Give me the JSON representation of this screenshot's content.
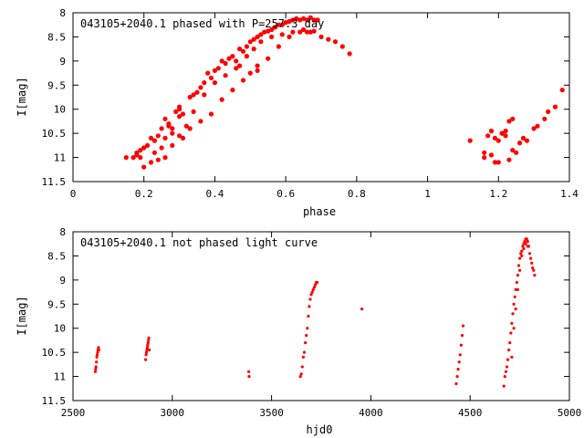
{
  "chart_data": [
    {
      "type": "scatter",
      "title": "043105+2040.1 phased with P=257.3 day",
      "xlabel": "phase",
      "ylabel": "I[mag]",
      "xlim": [
        0,
        1.4
      ],
      "ylim": [
        8,
        11.5
      ],
      "y_inverted": true,
      "xticks": [
        0,
        0.2,
        0.4,
        0.6,
        0.8,
        1,
        1.2,
        1.4
      ],
      "xtick_labels": [
        "0",
        "0.2",
        "0.4",
        "0.6",
        "0.8",
        "1",
        "1.2",
        "1.4"
      ],
      "yticks": [
        8,
        8.5,
        9,
        9.5,
        10,
        10.5,
        11,
        11.5
      ],
      "ytick_labels": [
        "8",
        "8.5",
        "9",
        "9.5",
        "10",
        "10.5",
        "11",
        "11.5"
      ],
      "grid": false,
      "marker_color": "#ff0000",
      "series": [
        {
          "x": [
            0.15,
            0.17,
            0.18,
            0.19,
            0.19,
            0.2,
            0.2,
            0.21,
            0.22,
            0.23,
            0.24,
            0.25,
            0.26,
            0.26,
            0.27,
            0.27,
            0.28,
            0.28,
            0.29,
            0.3,
            0.3,
            0.31,
            0.32,
            0.33,
            0.34,
            0.35,
            0.36,
            0.37,
            0.38,
            0.39,
            0.4,
            0.41,
            0.42,
            0.43,
            0.44,
            0.45,
            0.46,
            0.47,
            0.48,
            0.49,
            0.5,
            0.51,
            0.52,
            0.53,
            0.54,
            0.55,
            0.56,
            0.57,
            0.58,
            0.59,
            0.6,
            0.61,
            0.62,
            0.63,
            0.64,
            0.65,
            0.66,
            0.67,
            0.68,
            0.69,
            0.22,
            0.24,
            0.26,
            0.28,
            0.3,
            0.33,
            0.36,
            0.39,
            0.42,
            0.45,
            0.48,
            0.5,
            0.52,
            0.55,
            0.58,
            0.61,
            0.64,
            0.66,
            0.68,
            0.18,
            0.2,
            0.23,
            0.25,
            0.31,
            0.34,
            0.37,
            0.4,
            0.43,
            0.46,
            0.49,
            0.51,
            0.53,
            0.56,
            0.59,
            0.62,
            0.65,
            0.67,
            0.7,
            0.72,
            0.74,
            0.76,
            0.78,
            0.47,
            0.52,
            0.3,
            1.12,
            1.16,
            1.17,
            1.18,
            1.19,
            1.2,
            1.21,
            1.22,
            1.23,
            1.24,
            1.25,
            1.26,
            1.27,
            1.28,
            1.3,
            1.31,
            1.33,
            1.34,
            1.36,
            1.38,
            1.18,
            1.2,
            1.22,
            1.24,
            1.26,
            1.16,
            1.19,
            1.21,
            1.23
          ],
          "y": [
            11.0,
            11.0,
            10.9,
            10.85,
            11.0,
            10.8,
            11.2,
            10.75,
            10.6,
            10.65,
            10.55,
            10.4,
            10.2,
            10.6,
            10.3,
            10.35,
            10.5,
            10.4,
            10.05,
            9.95,
            10.0,
            10.1,
            10.35,
            9.75,
            9.7,
            9.65,
            9.55,
            9.45,
            9.25,
            9.35,
            9.2,
            9.15,
            9.0,
            9.05,
            8.95,
            8.9,
            9.0,
            8.75,
            8.8,
            8.7,
            8.6,
            8.55,
            8.5,
            8.45,
            8.4,
            8.38,
            8.35,
            8.3,
            8.25,
            8.25,
            8.2,
            8.18,
            8.15,
            8.12,
            8.15,
            8.12,
            8.15,
            8.1,
            8.15,
            8.15,
            11.1,
            11.05,
            11.0,
            10.75,
            10.55,
            10.4,
            10.25,
            10.1,
            9.8,
            9.6,
            9.4,
            9.25,
            9.1,
            8.95,
            8.7,
            8.5,
            8.4,
            8.4,
            8.38,
            10.95,
            10.8,
            10.9,
            10.8,
            10.6,
            10.05,
            9.7,
            9.45,
            9.3,
            9.15,
            8.9,
            8.75,
            8.6,
            8.5,
            8.45,
            8.4,
            8.35,
            8.4,
            8.5,
            8.55,
            8.6,
            8.7,
            8.85,
            9.1,
            9.2,
            10.15,
            10.65,
            10.9,
            10.55,
            10.45,
            11.1,
            11.1,
            10.5,
            10.45,
            11.05,
            10.2,
            10.9,
            10.7,
            10.6,
            10.65,
            10.4,
            10.35,
            10.2,
            10.05,
            9.95,
            9.6,
            10.95,
            10.65,
            10.55,
            10.85,
            10.7,
            11.0,
            10.6,
            10.5,
            10.25
          ]
        }
      ]
    },
    {
      "type": "scatter",
      "title": "043105+2040.1 not phased light curve",
      "xlabel": "hjd0",
      "ylabel": "I[mag]",
      "xlim": [
        2500,
        5000
      ],
      "ylim": [
        8,
        11.5
      ],
      "y_inverted": true,
      "xticks": [
        2500,
        3000,
        3500,
        4000,
        4500,
        5000
      ],
      "xtick_labels": [
        "2500",
        "3000",
        "3500",
        "4000",
        "4500",
        "5000"
      ],
      "yticks": [
        8,
        8.5,
        9,
        9.5,
        10,
        10.5,
        11,
        11.5
      ],
      "ytick_labels": [
        "8",
        "8.5",
        "9",
        "9.5",
        "10",
        "10.5",
        "11",
        "11.5"
      ],
      "grid": false,
      "marker_color": "#ff0000",
      "series": [
        {
          "x": [
            2612,
            2614,
            2616,
            2618,
            2620,
            2622,
            2624,
            2626,
            2628,
            2630,
            2866,
            2868,
            2870,
            2872,
            2874,
            2876,
            2878,
            2880,
            2882,
            2884,
            3385,
            3387,
            3645,
            3650,
            3655,
            3660,
            3665,
            3670,
            3675,
            3680,
            3685,
            3690,
            3695,
            3700,
            3705,
            3710,
            3715,
            3720,
            3725,
            3730,
            3955,
            4430,
            4435,
            4440,
            4445,
            4450,
            4455,
            4460,
            4465,
            4670,
            4675,
            4680,
            4685,
            4690,
            4695,
            4700,
            4705,
            4710,
            4715,
            4720,
            4725,
            4730,
            4735,
            4740,
            4745,
            4750,
            4755,
            4760,
            4765,
            4770,
            4775,
            4780,
            4785,
            4790,
            4795,
            4800,
            4805,
            4810,
            4815,
            4820,
            4825,
            4710,
            4720,
            4730,
            4740,
            4750,
            4760,
            4770,
            4780,
            4790
          ],
          "y": [
            10.9,
            10.85,
            10.8,
            10.7,
            10.6,
            10.55,
            10.5,
            10.45,
            10.4,
            10.45,
            10.65,
            10.55,
            10.5,
            10.45,
            10.4,
            10.35,
            10.3,
            10.25,
            10.2,
            10.45,
            10.9,
            11.0,
            11.0,
            10.95,
            10.8,
            10.6,
            10.5,
            10.3,
            10.15,
            10.0,
            9.75,
            9.55,
            9.4,
            9.3,
            9.25,
            9.2,
            9.15,
            9.1,
            9.05,
            9.05,
            9.6,
            11.15,
            11.0,
            10.85,
            10.7,
            10.55,
            10.35,
            10.15,
            9.95,
            11.2,
            11.0,
            10.9,
            10.8,
            10.65,
            10.45,
            10.3,
            10.1,
            9.9,
            9.7,
            9.5,
            9.35,
            9.2,
            9.05,
            8.9,
            8.7,
            8.55,
            8.45,
            8.4,
            8.3,
            8.25,
            8.2,
            8.15,
            8.15,
            8.2,
            8.3,
            8.45,
            8.55,
            8.65,
            8.75,
            8.8,
            8.9,
            10.6,
            10.0,
            9.6,
            9.2,
            8.8,
            8.5,
            8.35,
            8.25,
            8.3
          ]
        }
      ]
    }
  ]
}
